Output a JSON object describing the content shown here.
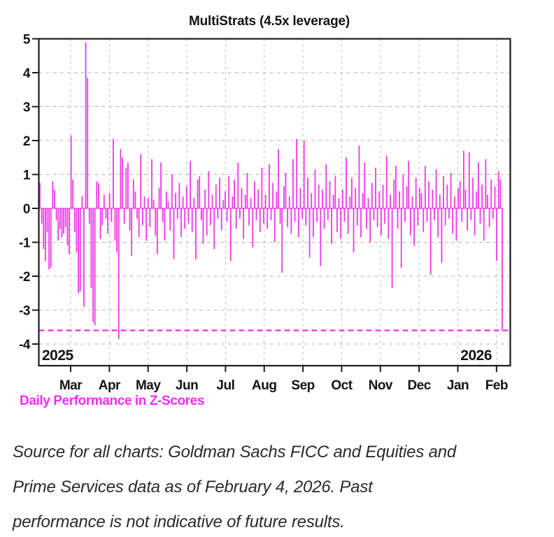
{
  "chart_data": {
    "type": "bar",
    "title": "MultiStrats (4.5x leverage)",
    "bottom_label": "Daily Performance in Z-Scores",
    "xlabel": "",
    "ylabel": "",
    "ylim": [
      -4.65,
      5
    ],
    "yticks": [
      5,
      4,
      3,
      2,
      1,
      0,
      -1,
      -2,
      -3,
      -4
    ],
    "x_month_labels": [
      "Mar",
      "Apr",
      "May",
      "Jun",
      "Jul",
      "Aug",
      "Sep",
      "Oct",
      "Nov",
      "Dec",
      "Jan",
      "Feb"
    ],
    "year_labels": {
      "left": "2025",
      "right": "2026"
    },
    "threshold_line": -3.6,
    "grid": true,
    "legend_position": "none",
    "values": [
      0.75,
      -0.45,
      -1.2,
      -1.55,
      -0.7,
      -1.8,
      -1.75,
      0.8,
      0.55,
      -0.35,
      -0.95,
      -0.6,
      -0.85,
      -0.75,
      -0.55,
      -1.1,
      -1.35,
      2.15,
      0.85,
      -0.7,
      -1.3,
      -2.5,
      -2.45,
      0.35,
      -2.9,
      4.9,
      3.85,
      -0.45,
      -2.35,
      -3.35,
      -3.45,
      0.8,
      0.75,
      -0.9,
      -0.5,
      0.4,
      -0.3,
      -0.75,
      0.45,
      -0.4,
      2.05,
      -0.95,
      -1.3,
      -3.85,
      1.75,
      1.5,
      -0.45,
      1.2,
      1.35,
      -0.65,
      -1.4,
      0.85,
      0.5,
      -0.3,
      -0.85,
      1.6,
      -0.5,
      0.35,
      -0.95,
      0.3,
      -0.55,
      1.45,
      0.25,
      -0.8,
      -1.35,
      0.6,
      1.35,
      -0.4,
      -0.95,
      0.5,
      0.2,
      -0.65,
      1.0,
      -1.5,
      0.45,
      -0.3,
      0.75,
      -0.85,
      0.35,
      -0.6,
      0.65,
      -0.45,
      1.4,
      -0.7,
      0.3,
      -1.5,
      0.85,
      0.95,
      -0.35,
      -1.05,
      0.55,
      -0.8,
      1.1,
      -0.5,
      0.4,
      -1.2,
      0.7,
      -0.3,
      0.9,
      -0.65,
      0.25,
      0.5,
      -0.4,
      0.95,
      -1.55,
      0.35,
      0.85,
      -0.6,
      1.35,
      -0.3,
      0.6,
      -0.9,
      0.4,
      1.05,
      -0.5,
      0.3,
      -1.15,
      0.8,
      -0.35,
      0.55,
      -0.7,
      1.2,
      -0.45,
      0.4,
      -0.6,
      1.3,
      -0.35,
      0.75,
      -1.0,
      0.5,
      1.75,
      -0.45,
      -1.9,
      0.65,
      1.05,
      -0.55,
      0.35,
      -0.75,
      1.45,
      -0.4,
      2.05,
      -0.85,
      0.6,
      -0.3,
      2.0,
      -0.5,
      0.9,
      -1.45,
      0.45,
      -0.85,
      1.15,
      -0.4,
      0.7,
      -1.7,
      0.55,
      -0.6,
      1.3,
      -0.35,
      0.8,
      -1.05,
      0.4,
      0.95,
      -0.7,
      0.3,
      -0.9,
      0.55,
      -0.4,
      1.5,
      -0.75,
      0.35,
      0.9,
      -1.3,
      0.6,
      -0.5,
      1.85,
      -0.85,
      0.45,
      1.35,
      -0.6,
      0.3,
      -1.0,
      0.75,
      -0.35,
      1.2,
      -0.55,
      0.5,
      -0.8,
      0.7,
      -0.45,
      1.55,
      -0.9,
      0.4,
      -2.35,
      0.85,
      1.25,
      -0.6,
      0.5,
      -1.75,
      1.0,
      -0.4,
      0.65,
      1.4,
      -0.8,
      0.35,
      -1.1,
      0.9,
      -0.5,
      0.6,
      0.45,
      -0.7,
      1.25,
      -0.4,
      0.8,
      -1.95,
      0.55,
      -0.35,
      1.15,
      -0.85,
      0.4,
      -1.6,
      0.95,
      -0.5,
      0.7,
      -0.3,
      1.05,
      -0.75,
      0.35,
      -0.95,
      0.6,
      0.8,
      -0.4,
      1.7,
      0.55,
      -0.65,
      1.65,
      -0.35,
      0.9,
      -0.8,
      0.5,
      1.35,
      -0.45,
      0.7,
      -0.95,
      1.45,
      0.4,
      -0.55,
      0.85,
      -0.3,
      0.65,
      -1.55,
      1.1,
      0.85,
      -3.6
    ]
  },
  "caption": {
    "lines": [
      "Source for all charts: Goldman Sachs FICC and Equities and",
      "Prime Services data as of February 4, 2026. Past",
      "performance is not indicative of future results."
    ]
  },
  "colors": {
    "accent": "#F137E8",
    "subtitle_text": "#FC2BF5",
    "grid": "#b3b3b3",
    "frame": "#1c1c1c",
    "caption_text": "#2b2b2b"
  }
}
